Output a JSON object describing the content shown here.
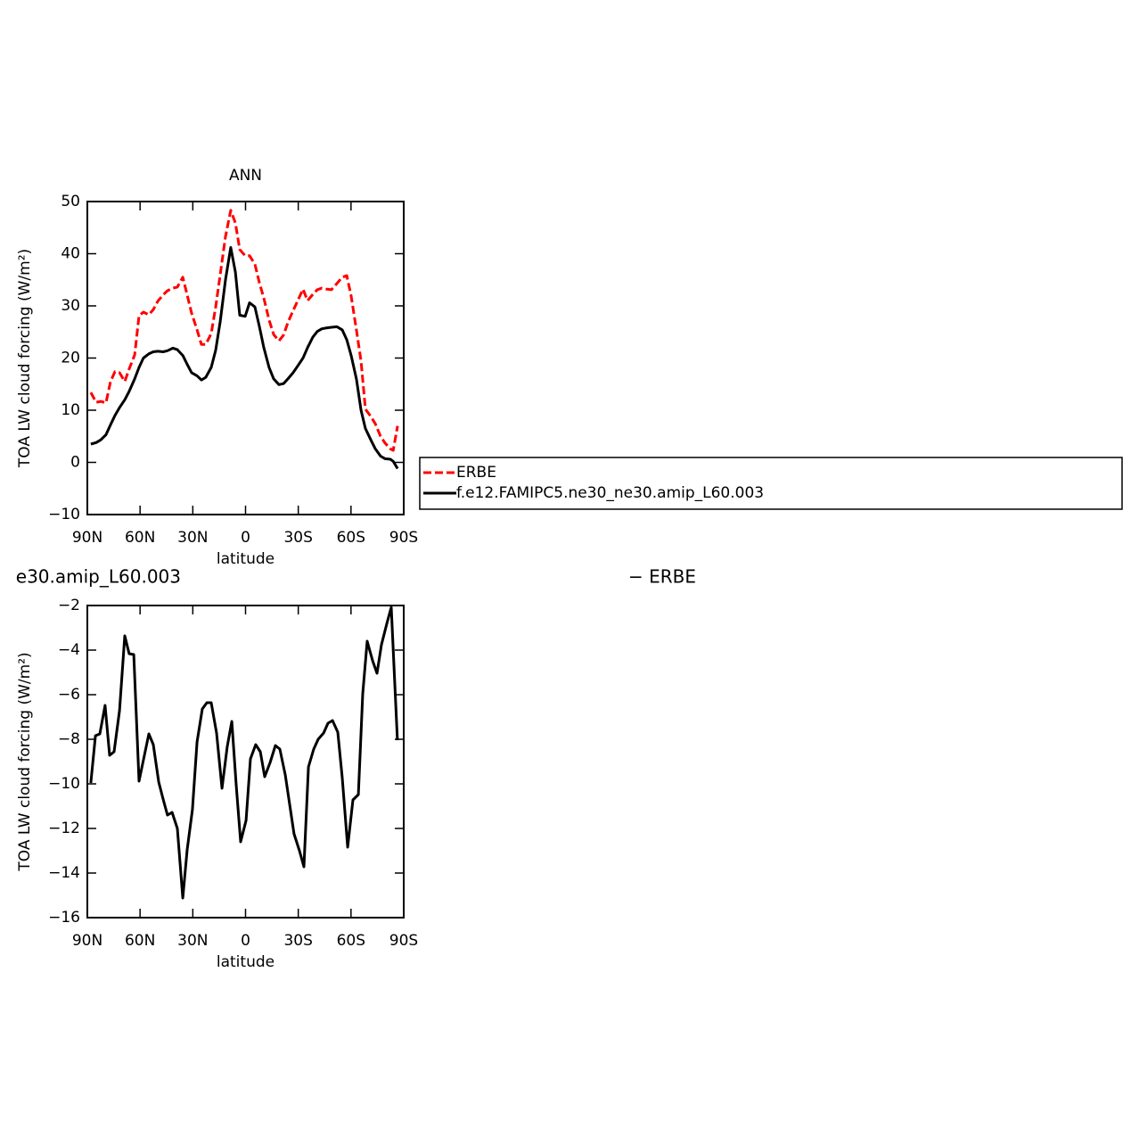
{
  "chart_data": [
    {
      "type": "line",
      "title": "ANN",
      "xlabel": "latitude",
      "ylabel": "TOA LW cloud forcing (W/m²)",
      "xlim": [
        90,
        -90
      ],
      "ylim": [
        -10,
        50
      ],
      "xticks": [
        {
          "value": 90,
          "label": "90N"
        },
        {
          "value": 60,
          "label": "60N"
        },
        {
          "value": 30,
          "label": "30N"
        },
        0,
        {
          "value": -30,
          "label": "30S"
        },
        {
          "value": -60,
          "label": "60S"
        },
        {
          "value": -90,
          "label": "90S"
        }
      ],
      "yticks": [
        {
          "value": -10,
          "label": "−10"
        },
        0,
        10,
        20,
        30,
        40,
        50
      ],
      "x": [
        88,
        85,
        82.4,
        79.4,
        76.8,
        74.3,
        71.7,
        68.7,
        66.2,
        63.1,
        60.6,
        58.1,
        55,
        52.5,
        49.9,
        46.9,
        44.4,
        41.3,
        38.8,
        35.7,
        33.2,
        30.7,
        27.6,
        25.1,
        22.6,
        19.5,
        17,
        14.4,
        11.4,
        8.4,
        5.8,
        3.3,
        0.2,
        -2.3,
        -5.3,
        -7.9,
        -10.4,
        -13.4,
        -16,
        -19,
        -21.6,
        -24.1,
        -27.1,
        -29.7,
        -32.7,
        -35.3,
        -38.3,
        -40.8,
        -43.4,
        -46.4,
        -48.9,
        -52,
        -55,
        -57.6,
        -60.1,
        -63.1,
        -65.7,
        -68.2,
        -71.3,
        -73.8,
        -76.8,
        -79.4,
        -82.4,
        -84,
        -86.5
      ],
      "series": [
        {
          "name": "ERBE",
          "color": "#ff0000",
          "dashed": true,
          "values": [
            13.4,
            11.5,
            11.7,
            11.4,
            15.5,
            17.4,
            17.2,
            15.5,
            17.9,
            20.6,
            28.1,
            28.8,
            28.3,
            29.3,
            30.9,
            32.1,
            32.9,
            33.4,
            33.6,
            35.5,
            32.1,
            28.6,
            25.4,
            22.6,
            22.6,
            24.7,
            29.8,
            36,
            43.3,
            48.3,
            45.9,
            40.8,
            39.6,
            39.6,
            38,
            34.4,
            31.5,
            27.3,
            24.5,
            23.3,
            24.4,
            26.8,
            29.1,
            31,
            33.2,
            31,
            32.2,
            33.1,
            33.4,
            33.2,
            33.1,
            34.3,
            35.5,
            35.8,
            31.9,
            25.4,
            19.4,
            10.2,
            8.8,
            7.4,
            5,
            3.7,
            2.6,
            2.3,
            7
          ]
        },
        {
          "name": "f.e12.FAMIPC5.ne30_ne30.amip_L60.003",
          "color": "#000000",
          "dashed": false,
          "values": [
            3.5,
            3.8,
            4.3,
            5.3,
            7.2,
            9,
            10.5,
            12,
            13.6,
            16,
            18.2,
            20,
            20.8,
            21.2,
            21.3,
            21.2,
            21.4,
            21.9,
            21.6,
            20.5,
            18.8,
            17.2,
            16.6,
            15.8,
            16.3,
            18.2,
            21.5,
            27,
            35,
            41.2,
            36.5,
            28.2,
            28,
            30.6,
            29.8,
            26,
            22,
            18.2,
            16,
            14.9,
            15.1,
            16,
            17.2,
            18.5,
            20,
            22,
            24,
            25.1,
            25.6,
            25.8,
            25.9,
            26,
            25.4,
            23.5,
            20.5,
            16,
            10,
            6.5,
            4.3,
            2.6,
            1.2,
            0.7,
            0.6,
            0.2,
            -1.2
          ]
        }
      ]
    },
    {
      "type": "line",
      "title_left": "e30.amip_L60.003",
      "title_right": "− ERBE",
      "xlabel": "latitude",
      "ylabel": "TOA LW cloud forcing (W/m²)",
      "xlim": [
        90,
        -90
      ],
      "ylim": [
        -16,
        -2
      ],
      "xticks": [
        {
          "value": 90,
          "label": "90N"
        },
        {
          "value": 60,
          "label": "60N"
        },
        {
          "value": 30,
          "label": "30N"
        },
        0,
        {
          "value": -30,
          "label": "30S"
        },
        {
          "value": -60,
          "label": "60S"
        },
        {
          "value": -90,
          "label": "90S"
        }
      ],
      "yticks": [
        {
          "value": -16,
          "label": "−16"
        },
        {
          "value": -14,
          "label": "−14"
        },
        {
          "value": -12,
          "label": "−12"
        },
        {
          "value": -10,
          "label": "−10"
        },
        {
          "value": -8,
          "label": "−8"
        },
        {
          "value": -6,
          "label": "−6"
        },
        {
          "value": -4,
          "label": "−4"
        },
        {
          "value": -2,
          "label": "−2"
        }
      ],
      "x": [
        88,
        85.4,
        82.9,
        79.9,
        77.3,
        74.8,
        71.7,
        68.7,
        66.2,
        63.6,
        60.6,
        55,
        52.5,
        49.4,
        46.9,
        44.4,
        41.8,
        38.8,
        35.7,
        33.2,
        30.2,
        27.6,
        24.6,
        22,
        19.5,
        16.5,
        13.4,
        10.4,
        7.8,
        5.3,
        2.8,
        -0.3,
        -2.8,
        -5.8,
        -8.4,
        -10.9,
        -14,
        -17,
        -19.5,
        -22.6,
        -25.1,
        -27.6,
        -30.7,
        -33.2,
        -35.8,
        -38.8,
        -41.3,
        -44.4,
        -46.9,
        -49.5,
        -52.5,
        -55,
        -58.1,
        -61.1,
        -64.2,
        -66.7,
        -69.2,
        -72.3,
        -74.8,
        -77.3,
        -80.4,
        -82.9,
        -86.4
      ],
      "color": "#000000",
      "values": [
        -9.96,
        -7.84,
        -7.76,
        -6.48,
        -8.72,
        -8.56,
        -6.72,
        -3.36,
        -4.16,
        -4.2,
        -9.88,
        -7.76,
        -8.24,
        -9.92,
        -10.68,
        -11.4,
        -11.28,
        -12,
        -15.12,
        -12.96,
        -11.16,
        -8.12,
        -6.64,
        -6.36,
        -6.36,
        -7.72,
        -10.2,
        -8.32,
        -7.2,
        -10.04,
        -12.6,
        -11.64,
        -8.88,
        -8.24,
        -8.56,
        -9.68,
        -9.04,
        -8.28,
        -8.44,
        -9.6,
        -10.92,
        -12.24,
        -13,
        -13.72,
        -9.24,
        -8.44,
        -8,
        -7.72,
        -7.28,
        -7.16,
        -7.68,
        -9.72,
        -12.84,
        -10.72,
        -10.48,
        -5.96,
        -3.6,
        -4.48,
        -5.04,
        -3.76,
        -2.8,
        -2.08,
        -8.04
      ]
    }
  ]
}
